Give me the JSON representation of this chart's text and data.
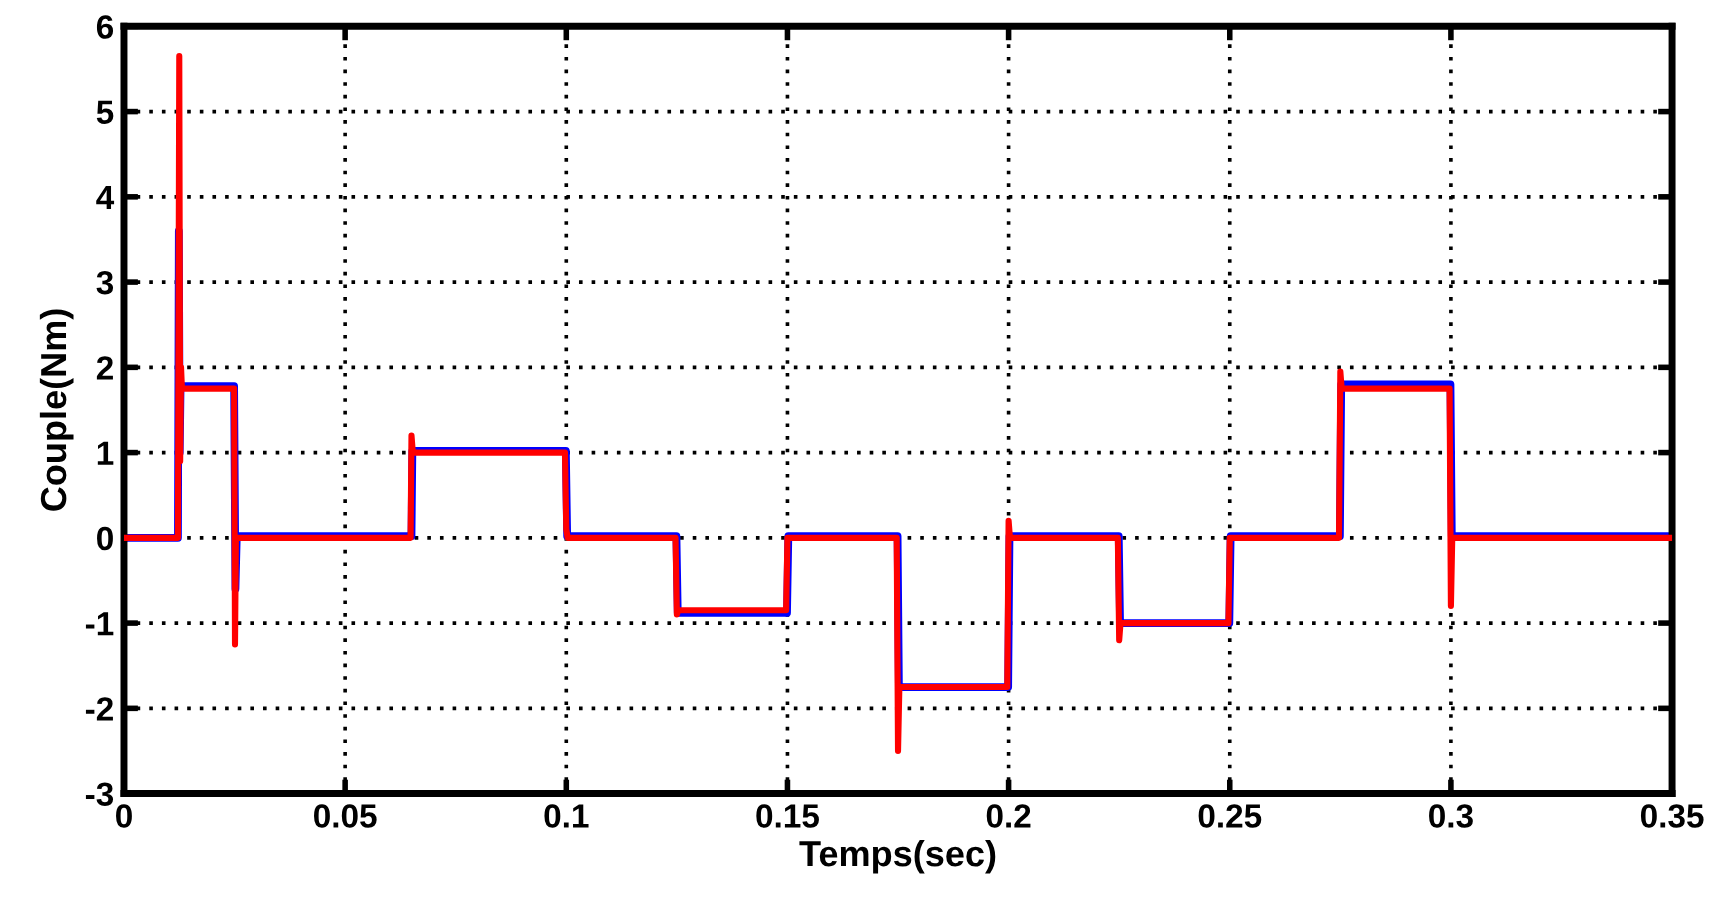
{
  "chart_data": {
    "type": "line",
    "xlabel": "Temps(sec)",
    "ylabel": "Couple(Nm)",
    "xlim": [
      0,
      0.35
    ],
    "ylim": [
      -3,
      6
    ],
    "xticks": [
      0,
      0.05,
      0.1,
      0.15,
      0.2,
      0.25,
      0.3,
      0.35
    ],
    "yticks": [
      -3,
      -2,
      -1,
      0,
      1,
      2,
      3,
      4,
      5,
      6
    ],
    "grid": true,
    "legend": false,
    "marker": "none",
    "line_style": "solid",
    "series": [
      {
        "color": "#0000ff",
        "x": [
          0,
          0.0122,
          0.0124,
          0.0126,
          0.0128,
          0.013,
          0.0249,
          0.0252,
          0.0255,
          0.065,
          0.0652,
          0.0999,
          0.1002,
          0.1249,
          0.1252,
          0.1499,
          0.1502,
          0.1749,
          0.1752,
          0.1999,
          0.2002,
          0.2249,
          0.2252,
          0.2499,
          0.2502,
          0.2749,
          0.2752,
          0.2999,
          0.3002,
          0.35
        ],
        "values": [
          0,
          0,
          3.6,
          1.0,
          1.8,
          1.78,
          1.78,
          -0.6,
          0.02,
          0.02,
          1.02,
          1.02,
          0.02,
          0.02,
          -0.88,
          -0.88,
          0.02,
          0.02,
          -1.75,
          -1.75,
          0.02,
          0.02,
          -1.0,
          -1.0,
          0.02,
          0.02,
          1.8,
          1.8,
          0.02,
          0.02
        ]
      },
      {
        "color": "#ff0000",
        "x": [
          0,
          0.0122,
          0.0125,
          0.0127,
          0.0129,
          0.0131,
          0.0133,
          0.0249,
          0.0251,
          0.0253,
          0.0256,
          0.0648,
          0.065,
          0.0653,
          0.0997,
          0.1,
          0.1003,
          0.1247,
          0.125,
          0.1253,
          0.1497,
          0.15,
          0.1503,
          0.1747,
          0.175,
          0.1753,
          0.1997,
          0.2,
          0.2003,
          0.2247,
          0.225,
          0.2253,
          0.2497,
          0.25,
          0.2503,
          0.2747,
          0.275,
          0.2753,
          0.2997,
          0.3,
          0.3003,
          0.35
        ],
        "values": [
          0,
          0,
          5.65,
          0.9,
          2.0,
          1.75,
          1.75,
          1.75,
          -1.25,
          0,
          0,
          0,
          1.2,
          1.0,
          1.0,
          0.1,
          0,
          0,
          -0.9,
          -0.85,
          -0.85,
          0,
          0,
          0,
          -2.5,
          -1.75,
          -1.75,
          0.2,
          0,
          0,
          -1.2,
          -1.0,
          -1.0,
          0,
          0,
          0,
          1.95,
          1.75,
          1.75,
          -0.8,
          0,
          0
        ]
      }
    ]
  }
}
